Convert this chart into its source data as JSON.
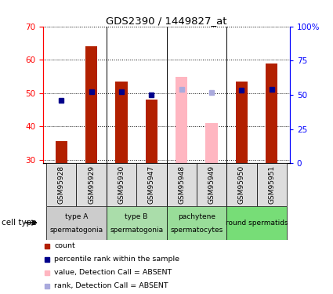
{
  "title": "GDS2390 / 1449827_at",
  "samples": [
    "GSM95928",
    "GSM95929",
    "GSM95930",
    "GSM95947",
    "GSM95948",
    "GSM95949",
    "GSM95950",
    "GSM95951"
  ],
  "bar_values": [
    35.5,
    64.0,
    53.5,
    48.0,
    null,
    null,
    53.5,
    59.0
  ],
  "bar_absent_values": [
    null,
    null,
    null,
    null,
    55.0,
    41.0,
    null,
    null
  ],
  "rank_values": [
    46.0,
    52.5,
    52.0,
    50.0,
    null,
    null,
    53.5,
    54.0
  ],
  "rank_absent_values": [
    null,
    null,
    null,
    null,
    54.0,
    51.5,
    null,
    null
  ],
  "bar_color": "#B22000",
  "bar_absent_color": "#FFB6C1",
  "rank_color": "#00008B",
  "rank_absent_color": "#AAAADD",
  "ylim": [
    29,
    70
  ],
  "yticks": [
    30,
    40,
    50,
    60,
    70
  ],
  "right_yticks": [
    0,
    25,
    50,
    75,
    100
  ],
  "right_ylabels": [
    "0",
    "25",
    "50",
    "75",
    "100%"
  ],
  "cell_groups": [
    {
      "label": "type A\nspermatogonia",
      "start": 0,
      "end": 2,
      "color": "#CCCCCC"
    },
    {
      "label": "type B\nspermatogonia",
      "start": 2,
      "end": 4,
      "color": "#AADDAA"
    },
    {
      "label": "pachytene\nspermatocytes",
      "start": 4,
      "end": 6,
      "color": "#99DD99"
    },
    {
      "label": "round spermatids",
      "start": 6,
      "end": 8,
      "color": "#77DD77"
    }
  ],
  "bar_width": 0.4,
  "rank_marker_size": 5
}
